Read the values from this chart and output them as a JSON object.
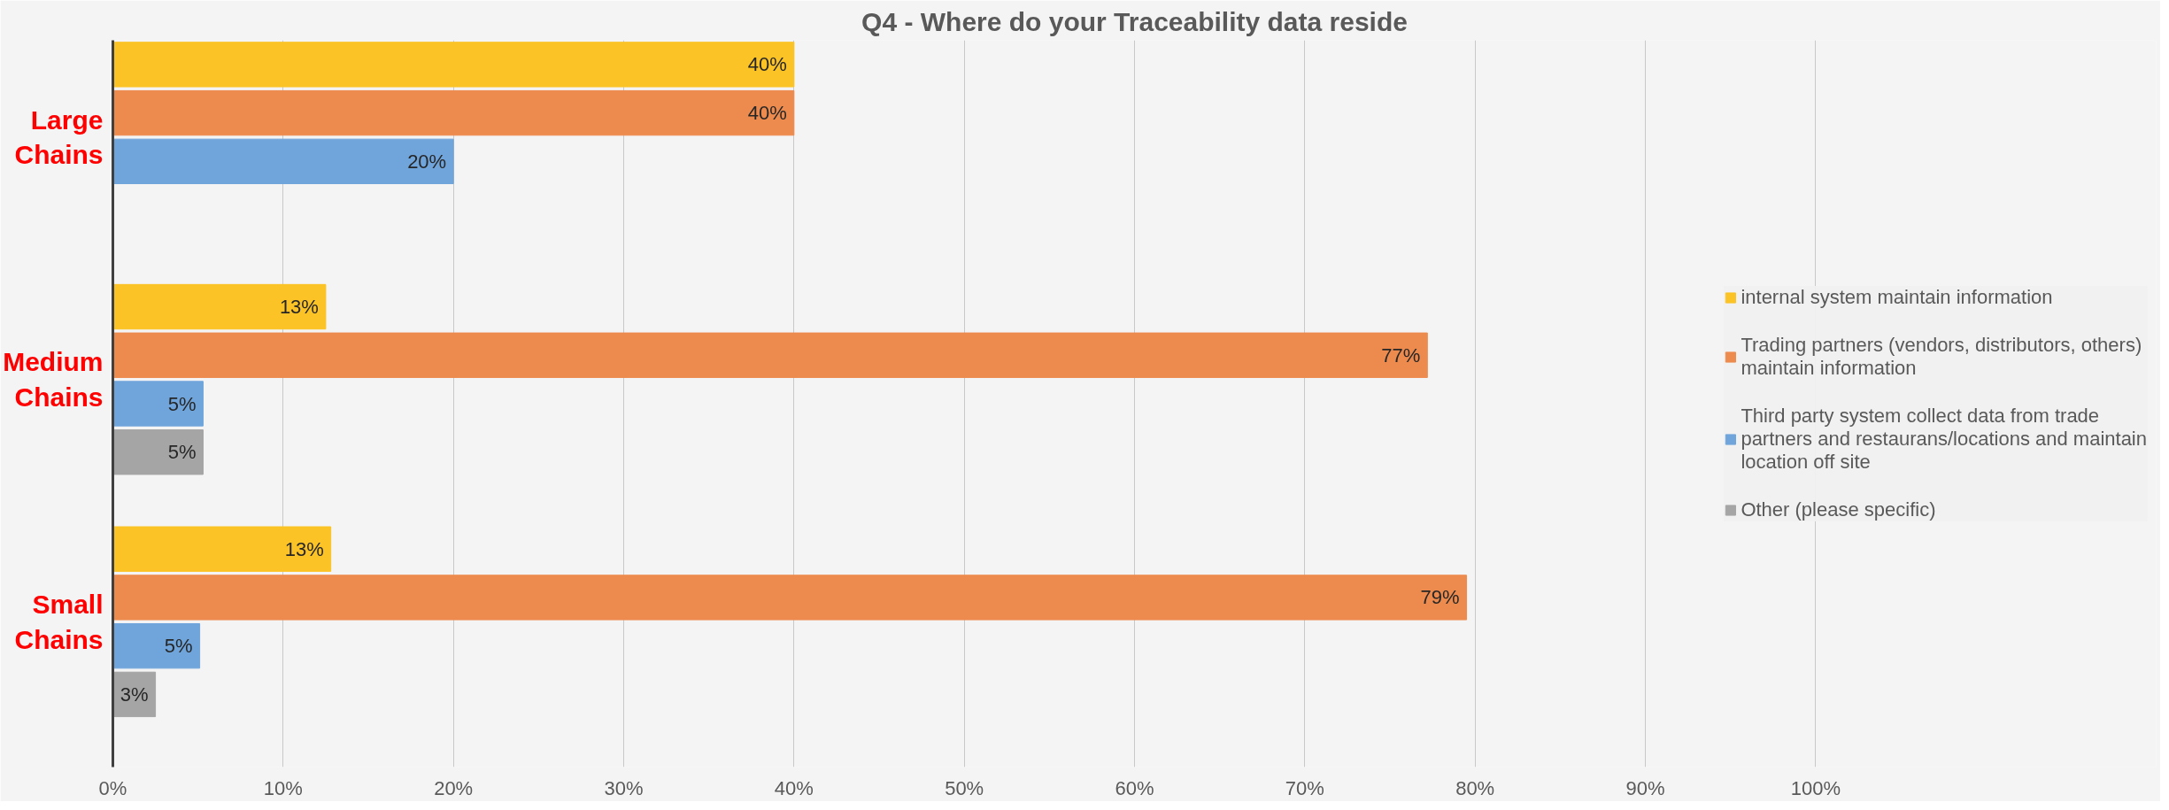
{
  "chart_data": {
    "type": "bar",
    "orientation": "horizontal",
    "title": "Q4 - Where do your Traceability data reside",
    "categories": [
      "Large Chains",
      "Medium Chains",
      "Small Chains"
    ],
    "series": [
      {
        "name": "internal system maintain information",
        "color": "#fbc325",
        "values": [
          40,
          12.5,
          12.8
        ],
        "value_labels": [
          "40%",
          "13%",
          "13%"
        ]
      },
      {
        "name": "Trading partners (vendors, distributors, others) maintain information",
        "color": "#ed8b4f",
        "values": [
          40,
          77.2,
          79.5
        ],
        "value_labels": [
          "40%",
          "77%",
          "79%"
        ]
      },
      {
        "name": "Third party system collect data from trade partners and restaurans/locations and maintain location off site",
        "color": "#70a5db",
        "values": [
          20,
          5.3,
          5.1
        ],
        "value_labels": [
          "20%",
          "5%",
          "5%"
        ]
      },
      {
        "name": "Other (please specific)",
        "color": "#a5a5a5",
        "values": [
          null,
          5.3,
          2.5
        ],
        "value_labels": [
          null,
          "5%",
          "3%"
        ]
      }
    ],
    "xlim": [
      0,
      120
    ],
    "xticks": [
      {
        "value": 0,
        "label": "0%"
      },
      {
        "value": 10,
        "label": "10%"
      },
      {
        "value": 20,
        "label": "20%"
      },
      {
        "value": 30,
        "label": "30%"
      },
      {
        "value": 40,
        "label": "40%"
      },
      {
        "value": 50,
        "label": "50%"
      },
      {
        "value": 60,
        "label": "60%"
      },
      {
        "value": 70,
        "label": "70%"
      },
      {
        "value": 80,
        "label": "80%"
      },
      {
        "value": 90,
        "label": "90%"
      },
      {
        "value": 100,
        "label": "100%"
      }
    ],
    "grid": "x",
    "legend": "right"
  }
}
